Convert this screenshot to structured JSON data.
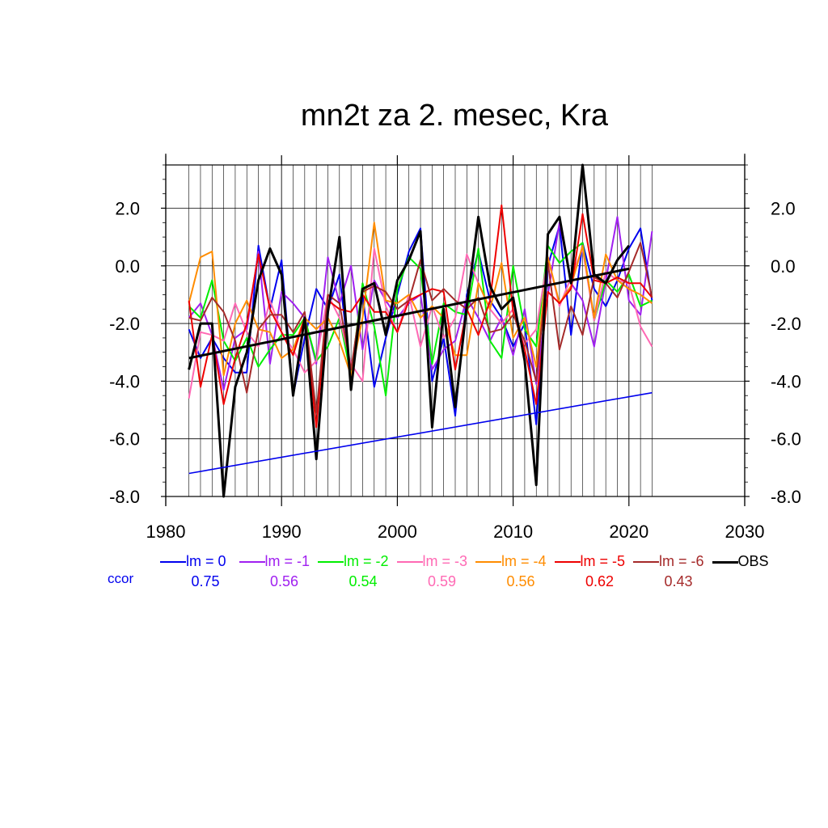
{
  "title": "mn2t za 2. mesec, Kra",
  "ccor_label": "ccor",
  "chart_data": {
    "type": "line",
    "title": "mn2t za 2. mesec, Kra",
    "xlabel": "",
    "ylabel": "",
    "xlim": [
      1980,
      2030
    ],
    "ylim": [
      -8.0,
      3.5
    ],
    "xticks": [
      1980,
      1990,
      2000,
      2010,
      2020,
      2030
    ],
    "yticks": [
      "-8.0",
      "-6.0",
      "-4.0",
      "-2.0",
      "0.0",
      "2.0"
    ],
    "grid": true,
    "legend_position": "bottom",
    "x": [
      1982,
      1983,
      1984,
      1985,
      1986,
      1987,
      1988,
      1989,
      1990,
      1991,
      1992,
      1993,
      1994,
      1995,
      1996,
      1997,
      1998,
      1999,
      2000,
      2001,
      2002,
      2003,
      2004,
      2005,
      2006,
      2007,
      2008,
      2009,
      2010,
      2011,
      2012,
      2013,
      2014,
      2015,
      2016,
      2017,
      2018,
      2019,
      2020,
      2021,
      2022
    ],
    "series": [
      {
        "name": "lm = 0",
        "color": "#0000ee",
        "ccor": "0.75",
        "values": [
          -2.2,
          -3.2,
          -2.5,
          -3.2,
          -3.7,
          -3.7,
          0.7,
          -1.5,
          0.2,
          -4.5,
          -2.5,
          -0.8,
          -1.5,
          -0.3,
          -3.8,
          -1.0,
          -4.2,
          -2.5,
          -1.0,
          0.5,
          1.3,
          -4.0,
          -2.5,
          -5.2,
          -1.0,
          0.5,
          -1.2,
          -1.8,
          -2.8,
          -2.0,
          -5.5,
          0.0,
          1.4,
          -2.4,
          0.8,
          -0.8,
          -1.4,
          -0.5,
          0.6,
          1.3,
          -1.2
        ]
      },
      {
        "name": "lm = -1",
        "color": "#a020f0",
        "ccor": "0.56",
        "values": [
          -1.8,
          -1.3,
          -2.4,
          -4.3,
          -2.5,
          -2.2,
          0.5,
          -3.4,
          -0.9,
          -1.3,
          -1.8,
          -3.4,
          0.3,
          -1.3,
          0.0,
          -2.9,
          -0.5,
          -1.2,
          -1.8,
          -1.3,
          -1.0,
          -3.6,
          -2.9,
          -2.6,
          -1.1,
          -1.8,
          -2.6,
          -1.8,
          -3.1,
          -1.5,
          -4.1,
          -1.0,
          1.5,
          -0.6,
          -1.2,
          -2.8,
          -0.5,
          1.7,
          -1.2,
          -1.7,
          1.2
        ]
      },
      {
        "name": "lm = -2",
        "color": "#00ee00",
        "ccor": "0.54",
        "values": [
          -1.4,
          -1.8,
          -0.5,
          -2.6,
          -3.3,
          -2.5,
          -3.5,
          -2.9,
          -2.4,
          -2.4,
          -1.8,
          -3.3,
          -2.8,
          -1.8,
          -3.8,
          -0.6,
          -2.1,
          -4.5,
          -0.8,
          0.3,
          -0.1,
          -3.4,
          -1.3,
          -1.6,
          -1.7,
          0.6,
          -2.6,
          -3.2,
          0.0,
          -2.2,
          -2.8,
          0.7,
          0.1,
          0.5,
          0.8,
          -1.9,
          -0.5,
          -0.9,
          -0.3,
          -1.4,
          -1.2
        ]
      },
      {
        "name": "lm = -3",
        "color": "#ff69b4",
        "ccor": "0.59",
        "values": [
          -4.6,
          -2.3,
          -2.4,
          -2.6,
          -1.3,
          -2.3,
          -2.8,
          -1.2,
          -2.3,
          -2.9,
          -3.7,
          -3.3,
          -1.0,
          -1.8,
          -3.4,
          -4.0,
          0.6,
          -1.4,
          -2.3,
          -1.0,
          -2.8,
          -1.4,
          -2.5,
          -1.8,
          0.4,
          -0.6,
          -1.5,
          -2.0,
          -1.5,
          -2.7,
          -2.2,
          0.3,
          -1.4,
          -0.4,
          0.6,
          -1.9,
          -0.2,
          -0.5,
          -0.6,
          -2.1,
          -2.8
        ]
      },
      {
        "name": "lm = -4",
        "color": "#ff8c00",
        "ccor": "0.56",
        "values": [
          -1.3,
          0.3,
          0.5,
          -3.8,
          -2.0,
          -1.2,
          -2.2,
          -2.3,
          -3.2,
          -2.9,
          -1.8,
          -2.2,
          -1.8,
          -2.6,
          -3.8,
          -1.8,
          1.5,
          -1.2,
          -1.3,
          -1.0,
          -1.8,
          -1.4,
          -1.8,
          -3.1,
          -3.1,
          -0.6,
          -1.5,
          0.1,
          -2.5,
          -1.8,
          -3.5,
          0.3,
          -1.3,
          -0.7,
          0.7,
          -1.8,
          0.4,
          -0.5,
          -0.8,
          -1.0,
          -1.3
        ]
      },
      {
        "name": "lm = -5",
        "color": "#ee0000",
        "ccor": "0.62",
        "values": [
          -1.2,
          -4.2,
          -2.4,
          -4.8,
          -3.2,
          -2.0,
          0.4,
          -1.5,
          -2.3,
          -3.1,
          -1.8,
          -5.6,
          -1.2,
          -1.5,
          -1.6,
          -1.0,
          -1.6,
          -1.6,
          -2.3,
          -1.2,
          -1.0,
          -0.8,
          -0.9,
          -3.6,
          -1.5,
          -2.4,
          -1.2,
          2.1,
          -1.6,
          -2.9,
          -4.8,
          -0.9,
          -1.3,
          -0.8,
          1.8,
          -0.5,
          -0.6,
          -0.4,
          -0.6,
          -0.6,
          -1.1
        ]
      },
      {
        "name": "lm = -6",
        "color": "#a52a2a",
        "ccor": "0.43",
        "values": [
          -1.8,
          -1.9,
          -1.1,
          -1.6,
          -2.6,
          -4.4,
          -2.2,
          -1.7,
          -1.7,
          -2.3,
          -1.6,
          -5.1,
          -1.0,
          -1.3,
          -3.6,
          -0.9,
          -0.7,
          -0.9,
          -1.5,
          -1.2,
          0.2,
          -1.2,
          -0.8,
          -1.2,
          -1.5,
          -1.1,
          -2.3,
          -2.2,
          -1.7,
          -2.6,
          -4.0,
          0.1,
          -2.9,
          -1.4,
          -2.4,
          -0.4,
          -0.6,
          -1.1,
          -0.2,
          0.8,
          -1.1
        ]
      },
      {
        "name": "OBS",
        "color": "#000000",
        "ccor": "",
        "values": [
          -3.6,
          -2.0,
          -2.0,
          -8.0,
          -4.2,
          -3.0,
          -0.5,
          0.6,
          -0.3,
          -4.5,
          -1.8,
          -6.7,
          -1.6,
          1.0,
          -4.3,
          -0.8,
          -0.6,
          -2.4,
          -0.5,
          0.2,
          1.2,
          -5.6,
          -1.5,
          -4.9,
          -1.4,
          1.7,
          -0.7,
          -1.5,
          -1.1,
          -3.3,
          -7.6,
          1.1,
          1.7,
          -0.6,
          3.5,
          -0.3,
          -0.6,
          0.2,
          0.7,
          null,
          null
        ]
      }
    ],
    "trend_lines": [
      {
        "name": "OBS trend",
        "color": "#000000",
        "x": [
          1982,
          2020
        ],
        "y": [
          -3.2,
          -0.1
        ]
      },
      {
        "name": "lm = 0 trend",
        "color": "#0000ee",
        "x": [
          1982,
          2022
        ],
        "y": [
          -7.2,
          -4.4
        ]
      }
    ]
  }
}
